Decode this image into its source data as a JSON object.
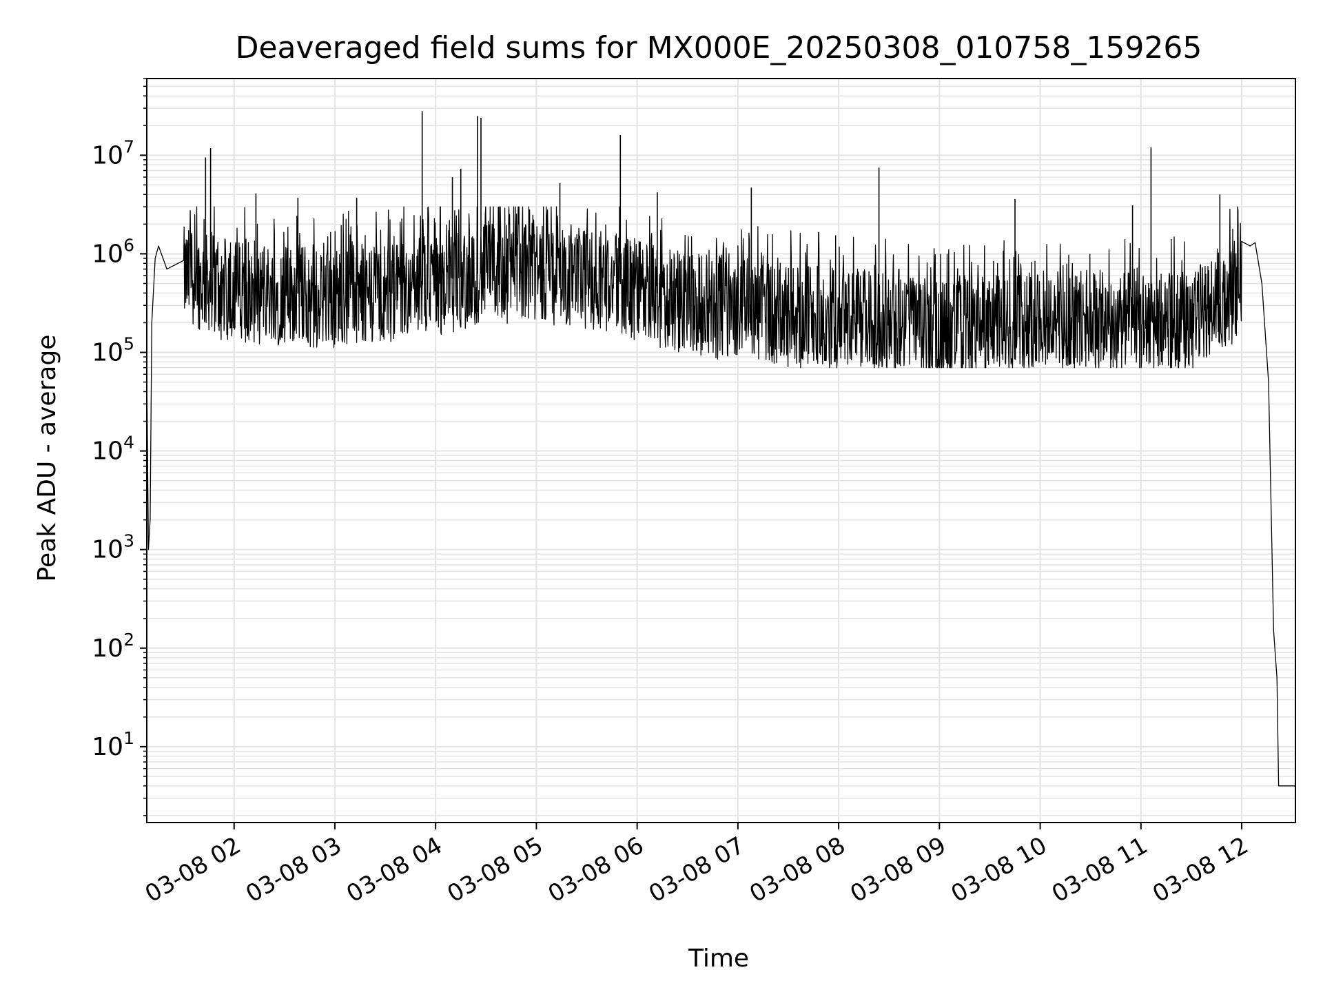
{
  "chart_data": {
    "type": "line",
    "title": "Deaveraged field sums for MX000E_20250308_010758_159265",
    "xlabel": "Time",
    "ylabel": "Peak ADU - average",
    "yscale": "log",
    "ylim": [
      1.7,
      60000000
    ],
    "xlim": [
      "2025-03-08 01:08",
      "2025-03-08 12:32"
    ],
    "grid": "on (major and minor, light grey)",
    "legend": "none",
    "line_color": "#000000",
    "grid_color": "#e3e3e3",
    "x_ticks": [
      {
        "value": "2025-03-08 02:00",
        "label": "03-08 02"
      },
      {
        "value": "2025-03-08 03:00",
        "label": "03-08 03"
      },
      {
        "value": "2025-03-08 04:00",
        "label": "03-08 04"
      },
      {
        "value": "2025-03-08 05:00",
        "label": "03-08 05"
      },
      {
        "value": "2025-03-08 06:00",
        "label": "03-08 06"
      },
      {
        "value": "2025-03-08 07:00",
        "label": "03-08 07"
      },
      {
        "value": "2025-03-08 08:00",
        "label": "03-08 08"
      },
      {
        "value": "2025-03-08 09:00",
        "label": "03-08 09"
      },
      {
        "value": "2025-03-08 10:00",
        "label": "03-08 10"
      },
      {
        "value": "2025-03-08 11:00",
        "label": "03-08 11"
      },
      {
        "value": "2025-03-08 12:00",
        "label": "03-08 12"
      }
    ],
    "y_ticks": [
      {
        "value": 10,
        "base": "10",
        "exp": "1"
      },
      {
        "value": 100,
        "base": "10",
        "exp": "2"
      },
      {
        "value": 1000,
        "base": "10",
        "exp": "3"
      },
      {
        "value": 10000,
        "base": "10",
        "exp": "4"
      },
      {
        "value": 100000,
        "base": "10",
        "exp": "5"
      },
      {
        "value": 1000000,
        "base": "10",
        "exp": "6"
      },
      {
        "value": 10000000,
        "base": "10",
        "exp": "7"
      }
    ],
    "series": [
      {
        "points": [
          [
            "2025-03-08 01:08",
            1.7
          ],
          [
            "2025-03-08 01:08",
            70000
          ],
          [
            "2025-03-08 01:09",
            1000
          ],
          [
            "2025-03-08 01:10",
            2000
          ],
          [
            "2025-03-08 01:11",
            200000
          ],
          [
            "2025-03-08 01:13",
            900000
          ],
          [
            "2025-03-08 01:15",
            1200000
          ],
          [
            "2025-03-08 01:20",
            700000
          ],
          [
            "2025-03-08 01:30",
            600000
          ],
          [
            "2025-03-08 01:45",
            500000
          ],
          [
            "2025-03-08 02:00",
            450000
          ],
          [
            "2025-03-08 02:30",
            400000
          ],
          [
            "2025-03-08 03:00",
            380000
          ],
          [
            "2025-03-08 03:30",
            420000
          ],
          [
            "2025-03-08 04:00",
            520000
          ],
          [
            "2025-03-08 04:30",
            650000
          ],
          [
            "2025-03-08 05:00",
            700000
          ],
          [
            "2025-03-08 05:30",
            600000
          ],
          [
            "2025-03-08 06:00",
            450000
          ],
          [
            "2025-03-08 06:30",
            330000
          ],
          [
            "2025-03-08 07:00",
            280000
          ],
          [
            "2025-03-08 07:30",
            250000
          ],
          [
            "2025-03-08 08:00",
            230000
          ],
          [
            "2025-03-08 08:30",
            210000
          ],
          [
            "2025-03-08 09:00",
            170000
          ],
          [
            "2025-03-08 09:30",
            190000
          ],
          [
            "2025-03-08 10:00",
            230000
          ],
          [
            "2025-03-08 10:30",
            220000
          ],
          [
            "2025-03-08 11:00",
            200000
          ],
          [
            "2025-03-08 11:30",
            220000
          ],
          [
            "2025-03-08 12:00",
            500000
          ],
          [
            "2025-03-08 12:05",
            1200000
          ],
          [
            "2025-03-08 12:08",
            1300000
          ],
          [
            "2025-03-08 12:12",
            500000
          ],
          [
            "2025-03-08 12:16",
            50000
          ],
          [
            "2025-03-08 12:19",
            150
          ],
          [
            "2025-03-08 12:21",
            50
          ],
          [
            "2025-03-08 12:22",
            4
          ],
          [
            "2025-03-08 12:32",
            4
          ]
        ],
        "spikes": [
          [
            "2025-03-08 01:43",
            9500000
          ],
          [
            "2025-03-08 01:46",
            11800000
          ],
          [
            "2025-03-08 02:13",
            4100000
          ],
          [
            "2025-03-08 02:38",
            3700000
          ],
          [
            "2025-03-08 03:13",
            3700000
          ],
          [
            "2025-03-08 03:52",
            28000000
          ],
          [
            "2025-03-08 04:10",
            6000000
          ],
          [
            "2025-03-08 04:15",
            7300000
          ],
          [
            "2025-03-08 04:25",
            25000000
          ],
          [
            "2025-03-08 04:27",
            24000000
          ],
          [
            "2025-03-08 05:14",
            5200000
          ],
          [
            "2025-03-08 05:50",
            16000000
          ],
          [
            "2025-03-08 06:12",
            4200000
          ],
          [
            "2025-03-08 07:08",
            4700000
          ],
          [
            "2025-03-08 08:24",
            7500000
          ],
          [
            "2025-03-08 09:45",
            3600000
          ],
          [
            "2025-03-08 10:55",
            3100000
          ],
          [
            "2025-03-08 11:06",
            12000000
          ],
          [
            "2025-03-08 11:47",
            4000000
          ]
        ],
        "band": {
          "low": 70000,
          "high": 2000000,
          "from": "2025-03-08 01:30",
          "to": "2025-03-08 12:00"
        }
      }
    ]
  }
}
